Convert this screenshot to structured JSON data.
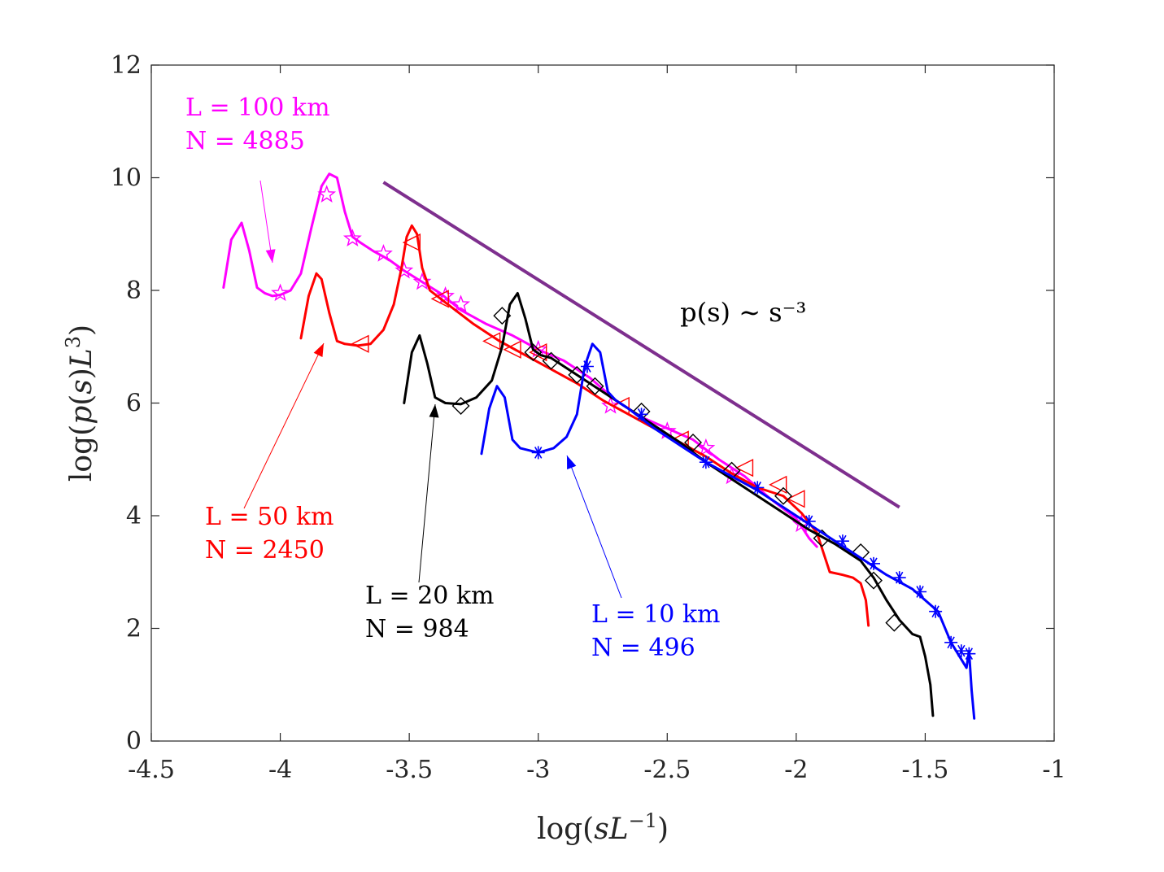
{
  "chart_data": {
    "type": "line",
    "title": "",
    "xlabel": "log(sL^{-1})",
    "ylabel": "log(p(s)L^3)",
    "xlim": [
      -4.5,
      -1
    ],
    "ylim": [
      0,
      12
    ],
    "grid": false,
    "x_ticks": [
      -4.5,
      -4,
      -3.5,
      -3,
      -2.5,
      -2,
      -1.5,
      -1
    ],
    "x_tick_labels": [
      "-4.5",
      "-4",
      "-3.5",
      "-3",
      "-2.5",
      "-2",
      "-1.5",
      "-1"
    ],
    "y_ticks": [
      0,
      2,
      4,
      6,
      8,
      10,
      12
    ],
    "y_tick_labels": [
      "0",
      "2",
      "4",
      "6",
      "8",
      "10",
      "12"
    ],
    "series": [
      {
        "name": "L = 100 km, N = 4885",
        "color": "#ff00ff",
        "marker": "star",
        "x": [
          -4.22,
          -4.19,
          -4.15,
          -4.12,
          -4.09,
          -4.06,
          -4.03,
          -4.0,
          -3.96,
          -3.92,
          -3.88,
          -3.84,
          -3.81,
          -3.78,
          -3.75,
          -3.72,
          -3.69,
          -3.64,
          -3.58,
          -3.52,
          -3.45,
          -3.38,
          -3.3,
          -3.2,
          -3.1,
          -3.0,
          -2.9,
          -2.8,
          -2.7,
          -2.6,
          -2.5,
          -2.4,
          -2.3,
          -2.2,
          -2.1,
          -2.0,
          -1.95,
          -1.92
        ],
        "y": [
          8.05,
          8.9,
          9.2,
          8.7,
          8.05,
          7.95,
          7.9,
          7.92,
          8.0,
          8.3,
          9.1,
          9.85,
          10.07,
          10.0,
          9.4,
          8.95,
          8.85,
          8.7,
          8.55,
          8.35,
          8.15,
          7.95,
          7.65,
          7.4,
          7.2,
          6.95,
          6.75,
          6.45,
          6.05,
          5.75,
          5.55,
          5.35,
          5.0,
          4.7,
          4.3,
          3.95,
          3.6,
          3.45
        ],
        "marker_x": [
          -4.0,
          -3.82,
          -3.72,
          -3.6,
          -3.52,
          -3.45,
          -3.36,
          -3.3,
          -3.0,
          -2.72,
          -2.5,
          -2.35,
          -2.25,
          -1.98
        ],
        "marker_y": [
          7.95,
          9.7,
          8.92,
          8.65,
          8.35,
          8.15,
          7.9,
          7.75,
          6.95,
          5.95,
          5.5,
          5.2,
          4.7,
          3.85
        ]
      },
      {
        "name": "L = 50 km, N = 2450",
        "color": "#ff0000",
        "marker": "triangle-left",
        "x": [
          -3.92,
          -3.89,
          -3.86,
          -3.84,
          -3.81,
          -3.78,
          -3.75,
          -3.7,
          -3.65,
          -3.6,
          -3.56,
          -3.53,
          -3.51,
          -3.49,
          -3.47,
          -3.45,
          -3.42,
          -3.35,
          -3.25,
          -3.15,
          -3.05,
          -2.95,
          -2.85,
          -2.75,
          -2.65,
          -2.55,
          -2.45,
          -2.35,
          -2.25,
          -2.15,
          -2.05,
          -1.98,
          -1.92,
          -1.87,
          -1.82,
          -1.78,
          -1.75,
          -1.73,
          -1.72
        ],
        "y": [
          7.15,
          7.9,
          8.3,
          8.2,
          7.6,
          7.1,
          7.05,
          7.02,
          7.05,
          7.3,
          7.75,
          8.4,
          8.95,
          9.15,
          9.0,
          8.4,
          8.0,
          7.75,
          7.4,
          7.1,
          6.85,
          6.6,
          6.35,
          6.05,
          5.8,
          5.55,
          5.3,
          5.05,
          4.75,
          4.5,
          4.35,
          4.05,
          3.7,
          3.0,
          2.95,
          2.9,
          2.8,
          2.5,
          2.05
        ],
        "marker_x": [
          -3.69,
          -3.49,
          -3.38,
          -3.18,
          -3.1,
          -3.0,
          -2.68,
          -2.45,
          -2.2,
          -2.07,
          -2.0
        ],
        "marker_y": [
          7.05,
          8.85,
          7.85,
          7.1,
          6.95,
          6.9,
          5.95,
          5.35,
          4.85,
          4.55,
          4.3
        ]
      },
      {
        "name": "L = 20 km, N = 984",
        "color": "#000000",
        "marker": "diamond",
        "x": [
          -3.52,
          -3.49,
          -3.46,
          -3.43,
          -3.4,
          -3.36,
          -3.3,
          -3.24,
          -3.18,
          -3.14,
          -3.11,
          -3.08,
          -3.05,
          -3.02,
          -2.99,
          -2.95,
          -2.85,
          -2.75,
          -2.65,
          -2.55,
          -2.45,
          -2.35,
          -2.25,
          -2.15,
          -2.05,
          -1.95,
          -1.85,
          -1.75,
          -1.7,
          -1.65,
          -1.6,
          -1.55,
          -1.52,
          -1.5,
          -1.48,
          -1.47
        ],
        "y": [
          6.0,
          6.9,
          7.2,
          6.7,
          6.1,
          6.0,
          5.98,
          6.1,
          6.4,
          7.0,
          7.75,
          7.95,
          7.5,
          6.95,
          6.85,
          6.8,
          6.5,
          6.2,
          5.9,
          5.6,
          5.3,
          4.95,
          4.65,
          4.35,
          4.05,
          3.75,
          3.5,
          3.2,
          2.9,
          2.5,
          2.15,
          1.9,
          1.85,
          1.5,
          1.0,
          0.45
        ],
        "marker_x": [
          -3.3,
          -3.14,
          -3.02,
          -2.95,
          -2.85,
          -2.78,
          -2.6,
          -2.4,
          -2.25,
          -2.05,
          -1.9,
          -1.75,
          -1.7,
          -1.62
        ],
        "marker_y": [
          5.95,
          7.55,
          6.9,
          6.75,
          6.5,
          6.3,
          5.85,
          5.3,
          4.8,
          4.35,
          3.6,
          3.35,
          2.85,
          2.1
        ]
      },
      {
        "name": "L = 10 km, N = 496",
        "color": "#0000ff",
        "marker": "asterisk",
        "x": [
          -3.22,
          -3.19,
          -3.16,
          -3.13,
          -3.1,
          -3.07,
          -3.0,
          -2.94,
          -2.89,
          -2.85,
          -2.82,
          -2.79,
          -2.76,
          -2.73,
          -2.7,
          -2.65,
          -2.55,
          -2.45,
          -2.35,
          -2.25,
          -2.15,
          -2.05,
          -1.95,
          -1.85,
          -1.75,
          -1.65,
          -1.55,
          -1.45,
          -1.4,
          -1.36,
          -1.34,
          -1.33,
          -1.32,
          -1.31
        ],
        "y": [
          5.1,
          5.9,
          6.3,
          6.1,
          5.35,
          5.2,
          5.12,
          5.2,
          5.4,
          5.8,
          6.65,
          7.05,
          6.9,
          6.2,
          6.05,
          5.9,
          5.55,
          5.25,
          4.95,
          4.7,
          4.45,
          4.15,
          3.85,
          3.55,
          3.25,
          2.95,
          2.7,
          2.3,
          1.75,
          1.45,
          1.3,
          1.6,
          0.9,
          0.4
        ],
        "marker_x": [
          -3.0,
          -2.81,
          -2.6,
          -2.35,
          -2.15,
          -1.95,
          -1.82,
          -1.7,
          -1.6,
          -1.52,
          -1.46,
          -1.4,
          -1.36,
          -1.33
        ],
        "marker_y": [
          5.12,
          6.65,
          5.8,
          4.95,
          4.5,
          3.9,
          3.55,
          3.15,
          2.9,
          2.65,
          2.3,
          1.75,
          1.6,
          1.55
        ]
      }
    ],
    "reference_line": {
      "label": "p(s) ∼ s⁻³",
      "color": "#7e2f8e",
      "x": [
        -3.6,
        -1.6
      ],
      "y": [
        9.92,
        4.15
      ]
    },
    "annotations": [
      {
        "name": "L = 100 km",
        "line1": "L = 100 km",
        "line2": "N = 4885",
        "color": "#ff00ff"
      },
      {
        "name": "L = 50 km",
        "line1": "L = 50 km",
        "line2": "N = 2450",
        "color": "#ff0000"
      },
      {
        "name": "L = 20 km",
        "line1": "L = 20 km",
        "line2": "N = 984",
        "color": "#000000"
      },
      {
        "name": "L = 10 km",
        "line1": "L = 10 km",
        "line2": "N = 496",
        "color": "#0000ff"
      }
    ]
  }
}
